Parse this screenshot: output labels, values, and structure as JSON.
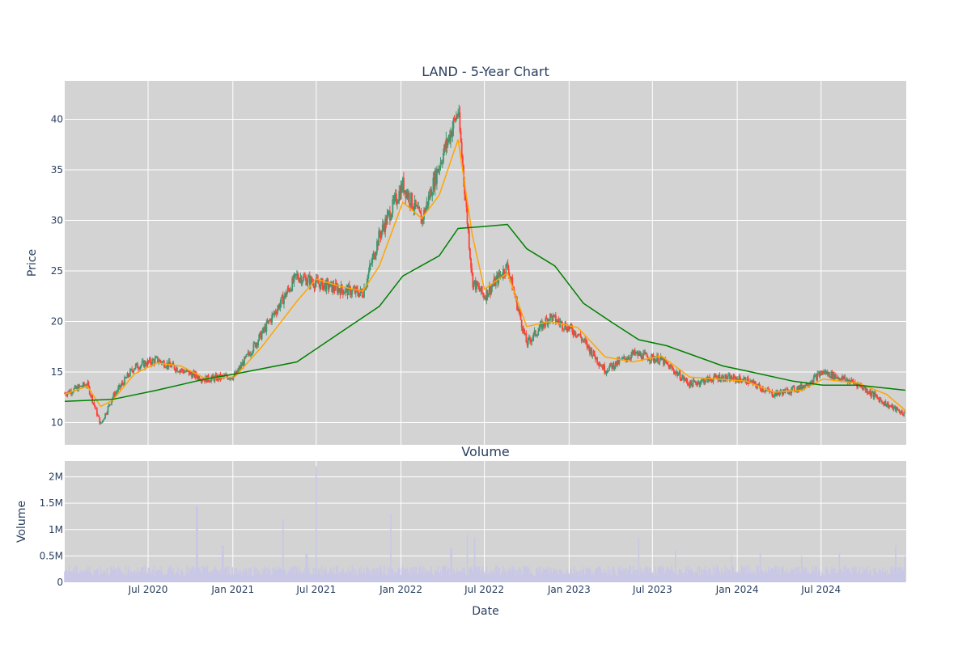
{
  "chart_title": "LAND - 5-Year Chart",
  "colors": {
    "plot_bg": "#d3d3d3",
    "grid": "#ffffff",
    "candle_up": "#3d9970",
    "candle_down": "#ff4136",
    "ma_short": "#ffa500",
    "ma_long": "#008000",
    "volume_bar": "#c8c8e6",
    "text": "#2a3f5f"
  },
  "chart_data": [
    {
      "type": "candlestick",
      "title": "LAND - 5-Year Chart",
      "ylabel": "Price",
      "ylim": [
        7.8,
        43.8
      ],
      "x_range": [
        "2020-01-02",
        "2025-01-02"
      ],
      "yticks": [
        "10",
        "15",
        "20",
        "25",
        "30",
        "35",
        "40"
      ],
      "grid": true,
      "series": [
        {
          "type": "candlestick",
          "x": [
            "2020-01-02",
            "2020-02-20",
            "2020-03-20",
            "2020-04-15",
            "2020-06-01",
            "2020-07-20",
            "2020-09-10",
            "2020-11-01",
            "2021-01-05",
            "2021-03-05",
            "2021-05-20",
            "2021-07-01",
            "2021-08-20",
            "2021-10-10",
            "2021-11-15",
            "2022-01-05",
            "2022-02-15",
            "2022-03-25",
            "2022-05-05",
            "2022-06-05",
            "2022-07-01",
            "2022-08-20",
            "2022-10-01",
            "2022-11-20",
            "2023-01-20",
            "2023-03-20",
            "2023-05-20",
            "2023-07-20",
            "2023-09-20",
            "2023-11-20",
            "2024-01-20",
            "2024-03-20",
            "2024-05-20",
            "2024-07-05",
            "2024-09-20",
            "2024-11-20",
            "2024-12-31"
          ],
          "close": [
            12.9,
            13.8,
            9.8,
            12.5,
            15.5,
            16.2,
            15.2,
            14.3,
            14.6,
            18.8,
            24.5,
            23.8,
            23.2,
            22.8,
            28.5,
            33.5,
            30.0,
            35.5,
            40.8,
            24.0,
            22.5,
            25.5,
            17.8,
            20.5,
            18.8,
            15.2,
            16.8,
            16.2,
            13.8,
            14.5,
            14.2,
            12.8,
            13.5,
            15.0,
            13.8,
            11.8,
            10.8
          ]
        },
        {
          "name": "",
          "type": "line",
          "color_key": "ma_short",
          "x": [
            "2020-01-02",
            "2020-02-20",
            "2020-03-20",
            "2020-04-15",
            "2020-06-01",
            "2020-07-20",
            "2020-09-10",
            "2020-11-01",
            "2021-01-05",
            "2021-03-05",
            "2021-05-20",
            "2021-07-01",
            "2021-08-20",
            "2021-10-10",
            "2021-11-15",
            "2022-01-05",
            "2022-02-15",
            "2022-03-25",
            "2022-05-05",
            "2022-06-05",
            "2022-07-01",
            "2022-08-20",
            "2022-10-01",
            "2022-11-20",
            "2023-01-20",
            "2023-03-20",
            "2023-05-20",
            "2023-07-20",
            "2023-09-20",
            "2023-11-20",
            "2024-01-20",
            "2024-03-20",
            "2024-05-20",
            "2024-07-05",
            "2024-09-20",
            "2024-11-20",
            "2024-12-31"
          ],
          "y": [
            12.8,
            13.6,
            11.6,
            12.2,
            14.8,
            15.9,
            15.6,
            14.4,
            14.5,
            17.5,
            22.0,
            24.2,
            23.5,
            23.0,
            25.5,
            31.8,
            30.2,
            32.5,
            38.0,
            28.5,
            23.2,
            24.8,
            19.5,
            20.0,
            19.4,
            16.5,
            16.0,
            16.6,
            14.5,
            14.3,
            14.1,
            13.0,
            13.2,
            14.3,
            13.9,
            12.8,
            11.2
          ]
        },
        {
          "name": "",
          "type": "line",
          "color_key": "ma_long",
          "x": [
            "2020-01-02",
            "2020-04-15",
            "2020-07-20",
            "2020-11-01",
            "2021-01-05",
            "2021-05-20",
            "2021-09-01",
            "2021-11-15",
            "2022-01-05",
            "2022-03-25",
            "2022-05-05",
            "2022-07-01",
            "2022-08-20",
            "2022-10-01",
            "2022-12-01",
            "2023-02-01",
            "2023-04-01",
            "2023-06-01",
            "2023-08-01",
            "2023-10-01",
            "2023-12-01",
            "2024-02-01",
            "2024-05-01",
            "2024-07-05",
            "2024-09-20",
            "2024-12-31"
          ],
          "y": [
            12.1,
            12.3,
            13.2,
            14.3,
            14.8,
            16.0,
            19.2,
            21.5,
            24.5,
            26.5,
            29.2,
            29.4,
            29.6,
            27.2,
            25.5,
            21.8,
            20.0,
            18.2,
            17.6,
            16.6,
            15.6,
            15.0,
            14.1,
            13.7,
            13.7,
            13.2
          ]
        }
      ]
    },
    {
      "type": "bar",
      "title": "Volume",
      "ylabel": "Volume",
      "xlabel": "Date",
      "ylim": [
        0,
        2300000
      ],
      "yticks": [
        "0",
        "0.5M",
        "1M",
        "1.5M",
        "2M"
      ],
      "x_ticks": [
        "Jul 2020",
        "Jan 2021",
        "Jul 2021",
        "Jan 2022",
        "Jul 2022",
        "Jan 2023",
        "Jul 2023",
        "Jan 2024",
        "Jul 2024"
      ],
      "x": [
        "2020-01-02",
        "2020-03-20",
        "2020-06-01",
        "2020-10-15",
        "2020-12-10",
        "2021-04-20",
        "2021-06-10",
        "2021-07-01",
        "2021-12-10",
        "2022-04-20",
        "2022-05-25",
        "2022-06-10",
        "2022-10-01",
        "2023-02-01",
        "2023-06-01",
        "2023-08-20",
        "2023-12-20",
        "2024-02-20",
        "2024-05-20",
        "2024-08-10",
        "2024-12-10",
        "2024-12-31"
      ],
      "values": [
        150000,
        300000,
        200000,
        1450000,
        700000,
        1200000,
        550000,
        2200000,
        1300000,
        650000,
        900000,
        850000,
        300000,
        250000,
        850000,
        600000,
        500000,
        550000,
        500000,
        550000,
        700000,
        500000
      ]
    }
  ]
}
